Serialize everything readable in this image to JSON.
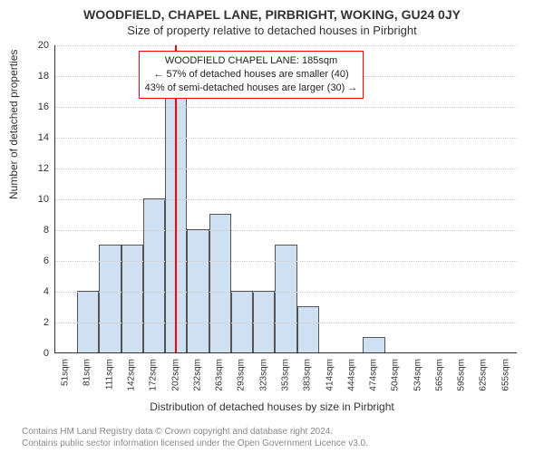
{
  "titles": {
    "line1": "WOODFIELD, CHAPEL LANE, PIRBRIGHT, WOKING, GU24 0JY",
    "line2": "Size of property relative to detached houses in Pirbright"
  },
  "axes": {
    "ylabel": "Number of detached properties",
    "xlabel": "Distribution of detached houses by size in Pirbright"
  },
  "footer": {
    "line1": "Contains HM Land Registry data © Crown copyright and database right 2024.",
    "line2": "Contains public sector information licensed under the Open Government Licence v3.0."
  },
  "chart": {
    "type": "histogram",
    "ylim": [
      0,
      20
    ],
    "ytick_step": 2,
    "yticks": [
      0,
      2,
      4,
      6,
      8,
      10,
      12,
      14,
      16,
      18,
      20
    ],
    "grid_color": "#cccccc",
    "axis_color": "#333333",
    "background_color": "#ffffff",
    "bar_color": "#cfe0f3",
    "bar_border": "#555555",
    "label_fontsize": 12,
    "tick_fontsize": 11,
    "categories": [
      "51sqm",
      "81sqm",
      "111sqm",
      "142sqm",
      "172sqm",
      "202sqm",
      "232sqm",
      "263sqm",
      "293sqm",
      "323sqm",
      "353sqm",
      "383sqm",
      "414sqm",
      "444sqm",
      "474sqm",
      "504sqm",
      "534sqm",
      "565sqm",
      "595sqm",
      "625sqm",
      "655sqm"
    ],
    "values": [
      0,
      4,
      7,
      7,
      10,
      18,
      8,
      9,
      4,
      4,
      7,
      3,
      0,
      0,
      1,
      0,
      0,
      0,
      0,
      0,
      0
    ],
    "reference_line": {
      "index": 5,
      "fraction_into_bin": 0.45,
      "color": "#ff0000",
      "width": 2
    },
    "annotation": {
      "lines": [
        "WOODFIELD CHAPEL LANE: 185sqm",
        "← 57% of detached houses are smaller (40)",
        "43% of semi-detached houses are larger (30) →"
      ],
      "border_color": "#ff0000",
      "text_color": "#222222",
      "fontsize": 11,
      "pos_top": 6,
      "pos_left_pct": 18
    }
  }
}
